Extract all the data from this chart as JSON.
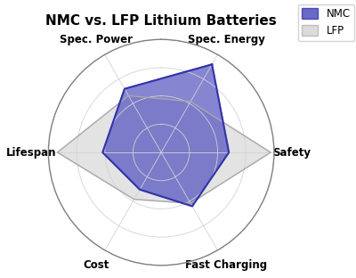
{
  "title": "NMC vs. LFP Lithium Batteries",
  "categories": [
    "Spec. Energy",
    "Safety",
    "Fast Charging",
    "Cost",
    "Lifespan",
    "Spec. Power"
  ],
  "NMC": [
    0.9,
    0.6,
    0.55,
    0.38,
    0.52,
    0.65
  ],
  "LFP": [
    0.52,
    0.97,
    0.52,
    0.48,
    0.92,
    0.58
  ],
  "nmc_color": "#3333AA",
  "nmc_fill": "#4444BB",
  "lfp_color": "#AAAAAA",
  "lfp_fill": "#CCCCCC",
  "background": "#ffffff",
  "title_fontsize": 11,
  "label_fontsize": 8.5,
  "legend_labels": [
    "NMC",
    "LFP"
  ]
}
